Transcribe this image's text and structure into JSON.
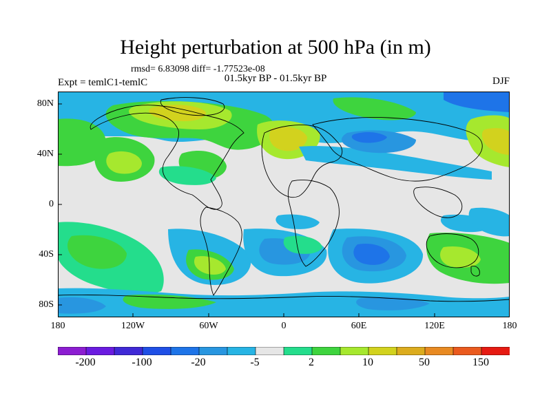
{
  "title": "Height perturbation at 500 hPa (in m)",
  "stats": "rmsd= 6.83098 diff= -1.77523e-08",
  "period": "01.5kyr BP - 01.5kyr BP",
  "experiment": "Expt = temlC1-temlC",
  "season": "DJF",
  "axes": {
    "lat_ticks": [
      "80N",
      "40N",
      "0",
      "40S",
      "80S"
    ],
    "lon_ticks": [
      "180",
      "120W",
      "60W",
      "0",
      "60E",
      "120E",
      "180"
    ]
  },
  "colorbar": {
    "labels": [
      "-200",
      "-100",
      "-20",
      "-5",
      "2",
      "10",
      "50",
      "150"
    ],
    "colors": [
      "#8c1dd1",
      "#6a1be0",
      "#3f29d6",
      "#1f4fe6",
      "#1e74e8",
      "#2896e0",
      "#27b4e4",
      "#e6e6e6",
      "#24dd8c",
      "#3ed43e",
      "#a6e82e",
      "#d2d21e",
      "#dcac1e",
      "#e88a22",
      "#ea5a1e",
      "#e61a12"
    ]
  }
}
